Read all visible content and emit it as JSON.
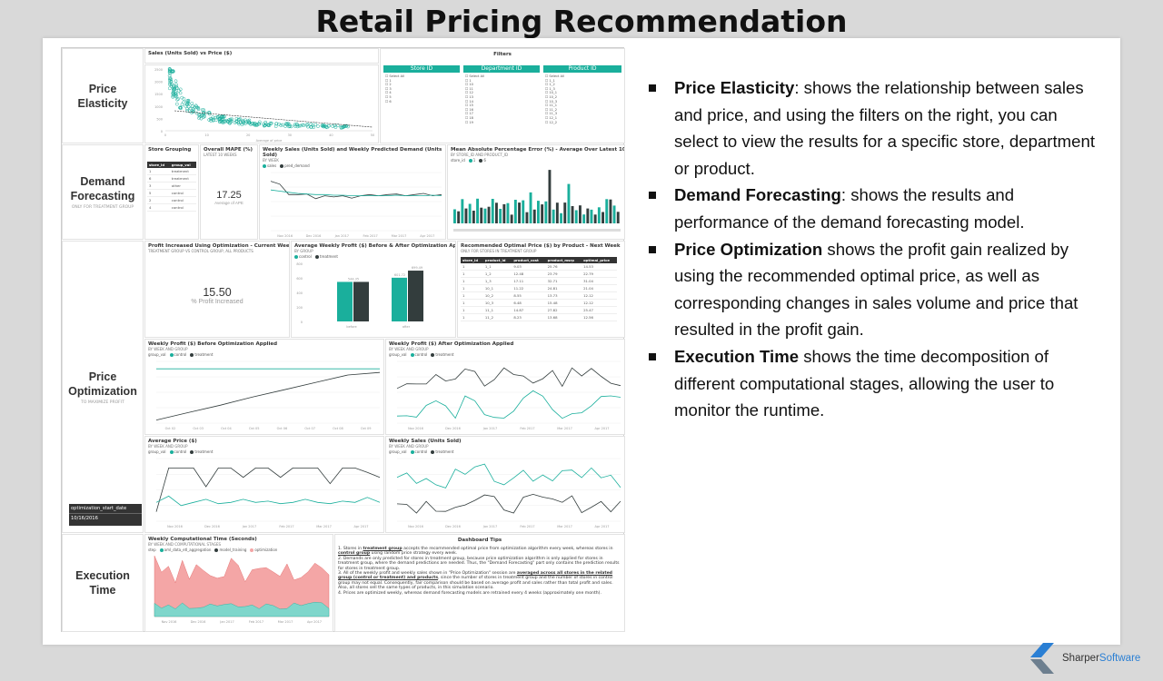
{
  "title": "Retail Pricing Recommendation",
  "colors": {
    "teal": "#1aaf9c",
    "dark": "#333d3d",
    "pink": "#f4a6a6",
    "accent": "#2a7fd4"
  },
  "sections": {
    "elasticity": {
      "label": "Price Elasticity"
    },
    "demand": {
      "label": "Demand Forecasting",
      "sub": "ONLY FOR TREATMENT GROUP"
    },
    "optimization": {
      "label": "Price Optimization",
      "sub": "TO MAXIMIZE PROFIT"
    },
    "execution": {
      "label": "Execution Time"
    }
  },
  "scatter": {
    "title": "Sales (Units Sold) vs Price ($)",
    "xlabel": "Average of price",
    "ylabel": "Average of sales",
    "yticks": [
      "2500",
      "2000",
      "1500",
      "1000",
      "500",
      "0"
    ],
    "xticks": [
      "0",
      "10",
      "20",
      "30",
      "40",
      "50"
    ]
  },
  "filters": {
    "title": "Filters",
    "store": {
      "label": "Store ID",
      "items": [
        "Select All",
        "1",
        "2",
        "3",
        "4",
        "5",
        "6"
      ]
    },
    "department": {
      "label": "Department ID",
      "items": [
        "Select All",
        "1",
        "10",
        "11",
        "12",
        "13",
        "14",
        "15",
        "16",
        "17",
        "18",
        "19"
      ]
    },
    "product": {
      "label": "Product ID",
      "items": [
        "Select All",
        "1_1",
        "1_2",
        "1_3",
        "10_1",
        "10_2",
        "10_3",
        "11_1",
        "11_2",
        "11_3",
        "12_1",
        "12_2"
      ]
    }
  },
  "store_grouping": {
    "title": "Store Grouping",
    "headers": [
      "store_id",
      "group_val"
    ],
    "rows": [
      [
        "1",
        "treatment"
      ],
      [
        "6",
        "treatment"
      ],
      [
        "3",
        "other"
      ],
      [
        "5",
        "control"
      ],
      [
        "2",
        "control"
      ],
      [
        "4",
        "control"
      ]
    ]
  },
  "mape": {
    "title": "Overall MAPE (%)",
    "sub": "LATEST 10 WEEKS",
    "value": "17.25",
    "caption": "Average of APE"
  },
  "weekly_sales_pred": {
    "title": "Weekly Sales (Units Sold) and Weekly Predicted Demand (Units Sold)",
    "sub": "BY WEEK",
    "legend": [
      "sales",
      "pred_demand"
    ],
    "yticks": [
      "300",
      "200",
      "100",
      "0"
    ],
    "xticks": [
      "Nov 2016",
      "Dec 2016",
      "Jan 2017",
      "Feb 2017",
      "Mar 2017",
      "Apr 2017"
    ]
  },
  "mape_bars": {
    "title": "Mean Absolute Percentage Error (%) - Average Over Latest 10 Weeks",
    "sub": "BY STORE_ID AND PRODUCT_ID",
    "legend_label": "store_id",
    "legend": [
      "1",
      "6"
    ]
  },
  "profit_increase": {
    "title": "Profit Increased Using Optimization - Current Week",
    "sub": "TREATMENT GROUP VS CONTROL GROUP, ALL PRODUCTS",
    "value": "15.50",
    "caption": "% Profit Increased"
  },
  "avg_profit": {
    "title": "Average Weekly Profit ($) Before & After Optimization Applied",
    "sub": "BY GROUP",
    "legend": [
      "control",
      "treatment"
    ],
    "groups": [
      "before",
      "after"
    ],
    "labels": [
      "544.35",
      "601.72",
      "699.49"
    ],
    "yticks": [
      "800",
      "600",
      "400",
      "200",
      "0"
    ]
  },
  "rec_price": {
    "title": "Recommended Optimal Price ($) by Product - Next Week",
    "sub": "ONLY FOR STORES IN TREATMENT GROUP",
    "headers": [
      "store_id",
      "product_id",
      "product_cost",
      "product_msrp",
      "optimal_price"
    ],
    "rows": [
      [
        "1",
        "1_1",
        "9.03",
        "25.76",
        "14.53"
      ],
      [
        "1",
        "1_2",
        "12.48",
        "23.79",
        "22.79"
      ],
      [
        "1",
        "1_3",
        "17.11",
        "32.71",
        "31.04"
      ],
      [
        "1",
        "10_1",
        "11.22",
        "24.81",
        "21.04"
      ],
      [
        "1",
        "10_2",
        "8.55",
        "13.73",
        "12.12"
      ],
      [
        "1",
        "10_3",
        "6.48",
        "15.48",
        "12.12"
      ],
      [
        "1",
        "11_1",
        "14.87",
        "27.82",
        "25.47"
      ],
      [
        "1",
        "11_2",
        "8.23",
        "13.68",
        "12.56"
      ]
    ]
  },
  "profit_before": {
    "title": "Weekly Profit ($) Before Optimization Applied",
    "sub": "BY WEEK AND GROUP",
    "legend_label": "group_val",
    "legend": [
      "control",
      "treatment"
    ],
    "xticks": [
      "Oct 02",
      "Oct 03",
      "Oct 04",
      "Oct 05",
      "Oct 06",
      "Oct 07",
      "Oct 08",
      "Oct 09"
    ]
  },
  "profit_after": {
    "title": "Weekly Profit ($) After Optimization Applied",
    "sub": "BY WEEK AND GROUP",
    "legend_label": "group_val",
    "legend": [
      "control",
      "treatment"
    ],
    "xticks": [
      "Nov 2016",
      "Dec 2016",
      "Jan 2017",
      "Feb 2017",
      "Mar 2017",
      "Apr 2017"
    ]
  },
  "avg_price": {
    "title": "Average Price ($)",
    "sub": "BY WEEK AND GROUP",
    "legend_label": "group_val",
    "legend": [
      "control",
      "treatment"
    ],
    "xticks": [
      "Nov 2016",
      "Dec 2016",
      "Jan 2017",
      "Feb 2017",
      "Mar 2017",
      "Apr 2017"
    ]
  },
  "weekly_sales": {
    "title": "Weekly Sales (Units Sold)",
    "sub": "BY WEEK AND GROUP",
    "legend_label": "group_val",
    "legend": [
      "control",
      "treatment"
    ],
    "xticks": [
      "Nov 2016",
      "Dec 2016",
      "Jan 2017",
      "Feb 2017",
      "Mar 2017",
      "Apr 2017"
    ]
  },
  "start_date": {
    "label": "optimization_start_date",
    "value": "10/16/2016"
  },
  "comp_time": {
    "title": "Weekly Computational Time (Seconds)",
    "sub": "BY WEEK AND COMPUTATIONAL STAGES",
    "legend_label": "step",
    "legend": [
      "aml_data_etl_aggregation",
      "model_training",
      "optimization"
    ],
    "xticks": [
      "Nov 2016",
      "Dec 2016",
      "Jan 2017",
      "Feb 2017",
      "Mar 2017",
      "Apr 2017"
    ]
  },
  "tips": {
    "title": "Dashboard Tips",
    "p1a": "1. Stores in ",
    "p1b": "treatment group",
    "p1c": " accepts the recommended optimal price from optimization algorithm every week, whereas stores in ",
    "p1d": "control group",
    "p1e": " using random price strategy every week.",
    "p2": "2. Demands are only predicted for stores in treatment group, because price optimization algorithm is only applied for stores in treatment group, where the demand predictions are needed. Thus, the \"Demand Forecasting\" part only contains the prediction results for stores in treatment group.",
    "p3a": "3. All of the weekly profit and weekly sales shown in \"Price Optimization\" session are ",
    "p3b": "averaged across all stores in the related group (control or treatment) and products",
    "p3c": ", since the number of stores in treatment group and the number of stores in control group may not equal. Consequently, fair comparison should be based on average profit and sales rather than total profit and sales. Also, all stores sell the same types of products, in this simulation scenario.",
    "p4": "4. Prices are optimized weekly, whereas demand forecasting models are retrained every 4 weeks (approximately one month)."
  },
  "bullets": [
    {
      "bold": "Price Elasticity",
      "text": ": shows the relationship between sales and price, and using the filters on the right, you can select to view the results for a specific store, department or product."
    },
    {
      "bold": "Demand Forecasting",
      "text": ": shows the results and performance of the demand forecasting model."
    },
    {
      "bold": "Price Optimization",
      "text": " shows the profit gain realized by using the recommended optimal price, as well as corresponding changes in sales volume and price that resulted in the profit gain."
    },
    {
      "bold": "Execution Time",
      "text": " shows the time decomposition of different computational stages, allowing the user to monitor the runtime."
    }
  ],
  "logo": {
    "part1": "Sharper",
    "part2": "Software"
  }
}
